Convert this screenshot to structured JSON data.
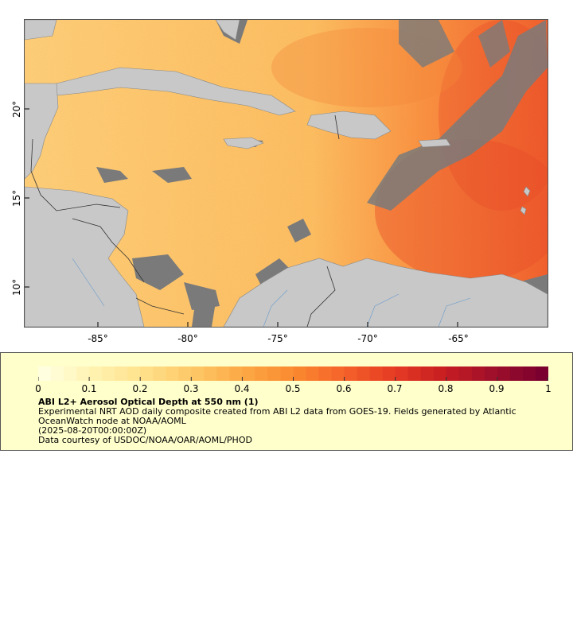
{
  "map": {
    "title": "ABI L2+ Aerosol Optical Depth at 550 nm (1)",
    "x_ticks": [
      "-85°",
      "-80°",
      "-75°",
      "-70°",
      "-65°"
    ],
    "y_ticks": [
      "20°",
      "15°",
      "10°"
    ],
    "lon_range": [
      -89,
      -60
    ],
    "lat_range": [
      8,
      25
    ]
  },
  "legend": {
    "colorbar_labels": [
      "0",
      "0.1",
      "0.2",
      "0.3",
      "0.4",
      "0.5",
      "0.6",
      "0.7",
      "0.8",
      "0.9",
      "1"
    ],
    "colorbar_range": [
      0,
      1
    ],
    "title": "ABI L2+ Aerosol Optical Depth at 550 nm (1)",
    "line1": "Experimental NRT AOD daily composite created from ABI L2 data from GOES-19. Fields generated by Atlantic OceanWatch node at NOAA/AOML",
    "line2": "(2025-08-20T00:00:00Z)",
    "line3": "Data courtesy of USDOC/NOAA/OAR/AOML/PHOD"
  },
  "colors": {
    "land": "#c8c8c8",
    "no_data": "#7a7a7a",
    "legend_bg": "#ffffcc",
    "colormap": [
      "#ffffe0",
      "#fff2b0",
      "#ffe08a",
      "#fdc765",
      "#fca845",
      "#fb8a30",
      "#f4632a",
      "#e63c24",
      "#c81e22",
      "#a0102a",
      "#7a0030"
    ]
  }
}
